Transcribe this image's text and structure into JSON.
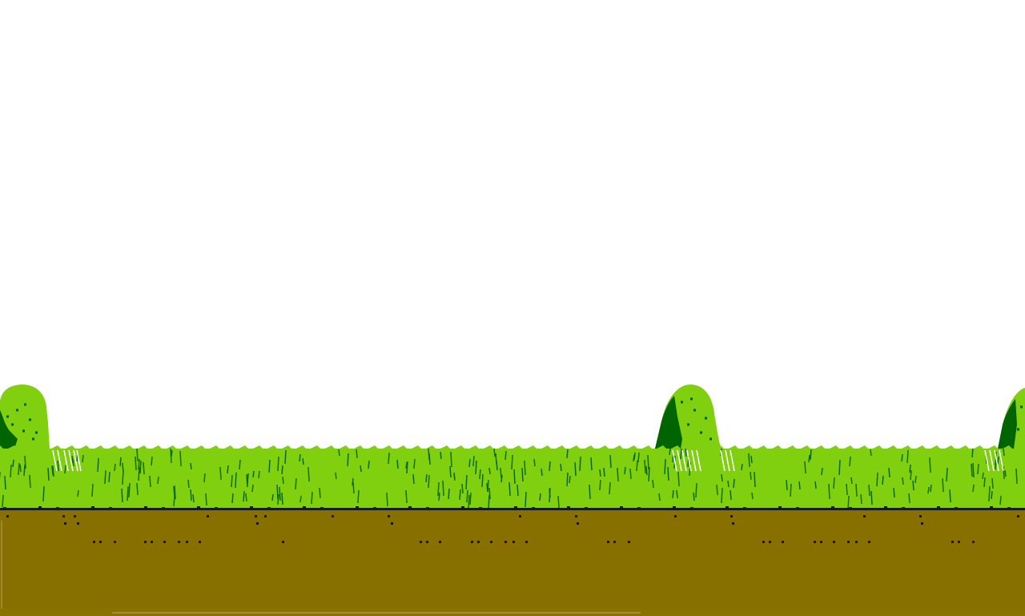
{
  "scene": {
    "colors": {
      "sky": "#ffffff",
      "tree_light": "#80d010",
      "tree_dark": "#006400",
      "grass": "#80d010",
      "grass_dark_blade": "#0a6a10",
      "grass_light_blade": "#ffffff",
      "grass_edge": "#2aa0e0",
      "ground_line": "#1a1a1a",
      "dirt": "#887000",
      "dirt_speck": "#1a1a1a",
      "shadow_bottom": "#b8a060"
    },
    "trees": [
      {
        "name": "tree-left"
      },
      {
        "name": "tree-center"
      },
      {
        "name": "tree-right"
      }
    ]
  }
}
